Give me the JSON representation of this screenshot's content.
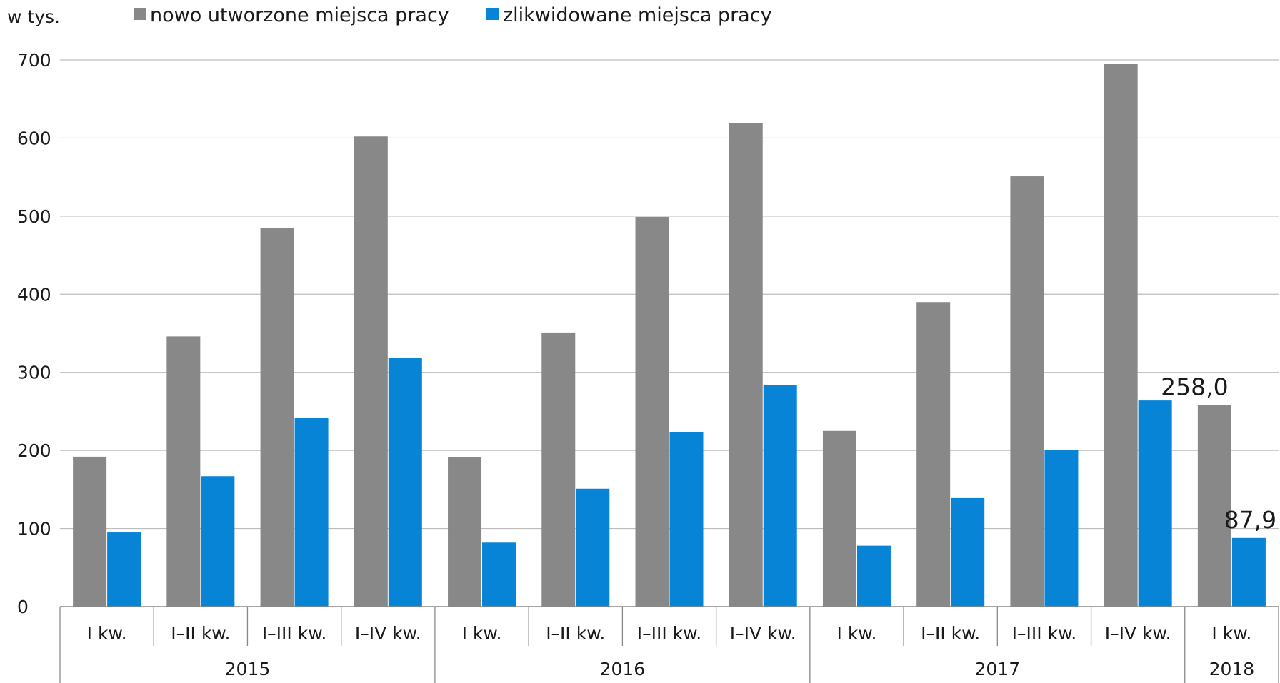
{
  "chart_data": {
    "type": "bar",
    "unit_label": "w tys.",
    "ylim": [
      0,
      700
    ],
    "yticks": [
      0,
      100,
      200,
      300,
      400,
      500,
      600,
      700
    ],
    "grid": true,
    "legend_position": "top",
    "categories": [
      "I kw.",
      "I–II kw.",
      "I–III kw.",
      "I–IV kw.",
      "I kw.",
      "I–II kw.",
      "I–III kw.",
      "I–IV kw.",
      "I kw.",
      "I–II kw.",
      "I–III kw.",
      "I–IV kw.",
      "I kw."
    ],
    "groups": [
      {
        "label": "2015",
        "count": 4
      },
      {
        "label": "2016",
        "count": 4
      },
      {
        "label": "2017",
        "count": 4
      },
      {
        "label": "2018",
        "count": 1
      }
    ],
    "series": [
      {
        "name": "nowo utworzone miejsca pracy",
        "color": "#888888",
        "values": [
          192,
          346,
          485,
          602,
          191,
          351,
          499,
          619,
          225,
          390,
          551,
          695,
          258.0
        ]
      },
      {
        "name": "zlikwidowane miejsca pracy",
        "color": "#0784d6",
        "values": [
          95,
          167,
          242,
          318,
          82,
          151,
          223,
          284,
          78,
          139,
          201,
          264,
          87.9
        ]
      }
    ],
    "data_labels": [
      {
        "series": 0,
        "index": 12,
        "text": "258,0"
      },
      {
        "series": 1,
        "index": 12,
        "text": "87,9"
      }
    ]
  }
}
